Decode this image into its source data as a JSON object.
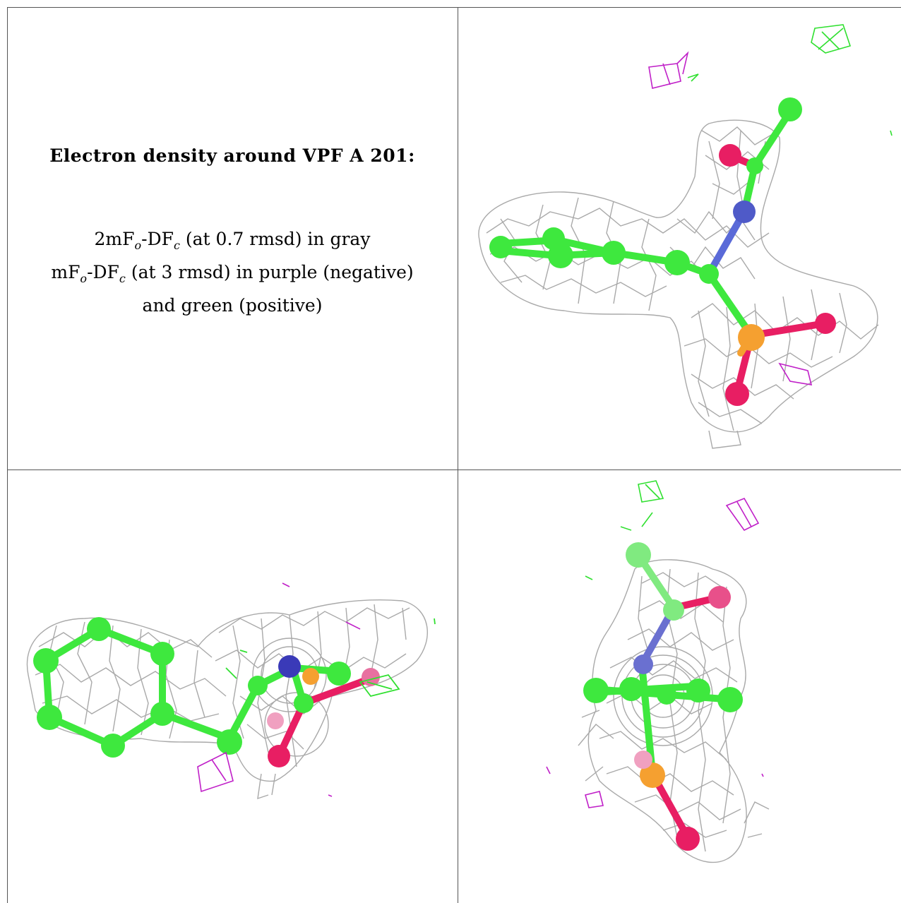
{
  "legend": {
    "title": "Electron density around VPF A 201:",
    "line1_pre": "2mF",
    "line1_sub1": "o",
    "line1_mid": "-DF",
    "line1_sub2": "c",
    "line1_post": " (at 0.7 rmsd) in gray",
    "line2_pre": "mF",
    "line2_sub1": "o",
    "line2_mid": "-DF",
    "line2_sub2": "c",
    "line2_post": " (at 3 rmsd) in purple (negative)",
    "line3": "and green (positive)"
  },
  "colors": {
    "mesh_gray": "#a9a9a9",
    "carbon_green": "#3ee83e",
    "oxygen_red": "#e81e63",
    "nitrogen_blue": "#4040c0",
    "phosphorus_orange": "#f5a030",
    "negative_purple": "#c020c8",
    "positive_green": "#30e030",
    "grid_line": "#555555"
  }
}
